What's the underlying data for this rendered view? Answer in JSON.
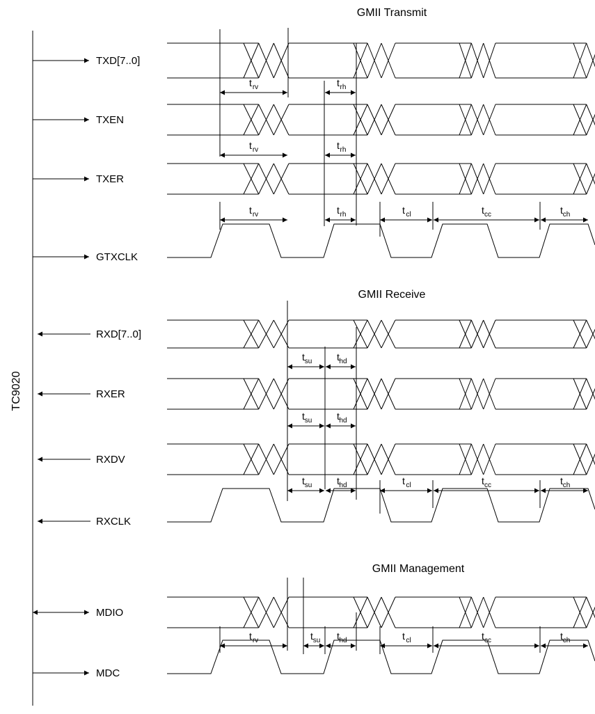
{
  "chip_label": "TC9020",
  "sections": [
    {
      "id": "transmit",
      "title": "GMII Transmit"
    },
    {
      "id": "receive",
      "title": "GMII Receive"
    },
    {
      "id": "management",
      "title": "GMII Management"
    }
  ],
  "signals": [
    {
      "id": "txd",
      "label": "TXD[7..0]",
      "kind": "data",
      "direction": "out"
    },
    {
      "id": "txen",
      "label": "TXEN",
      "kind": "data",
      "direction": "out"
    },
    {
      "id": "txer",
      "label": "TXER",
      "kind": "data",
      "direction": "out"
    },
    {
      "id": "gtxclk",
      "label": "GTXCLK",
      "kind": "clock",
      "direction": "out"
    },
    {
      "id": "rxd",
      "label": "RXD[7..0]",
      "kind": "data",
      "direction": "in"
    },
    {
      "id": "rxer",
      "label": "RXER",
      "kind": "data",
      "direction": "in"
    },
    {
      "id": "rxdv",
      "label": "RXDV",
      "kind": "data",
      "direction": "in"
    },
    {
      "id": "rxclk",
      "label": "RXCLK",
      "kind": "clock",
      "direction": "in"
    },
    {
      "id": "mdio",
      "label": "MDIO",
      "kind": "data",
      "direction": "bidir"
    },
    {
      "id": "mdc",
      "label": "MDC",
      "kind": "clock",
      "direction": "out"
    }
  ],
  "timing_labels": {
    "trv": {
      "symbol": "t",
      "sub": "rv"
    },
    "trh": {
      "symbol": "t",
      "sub": "rh"
    },
    "tsu": {
      "symbol": "t",
      "sub": "su"
    },
    "thd": {
      "symbol": "t",
      "sub": "hd"
    },
    "tcl": {
      "symbol": "t",
      "sub": "cl"
    },
    "tcc": {
      "symbol": "t",
      "sub": "cc"
    },
    "tch": {
      "symbol": "t",
      "sub": "ch"
    }
  }
}
